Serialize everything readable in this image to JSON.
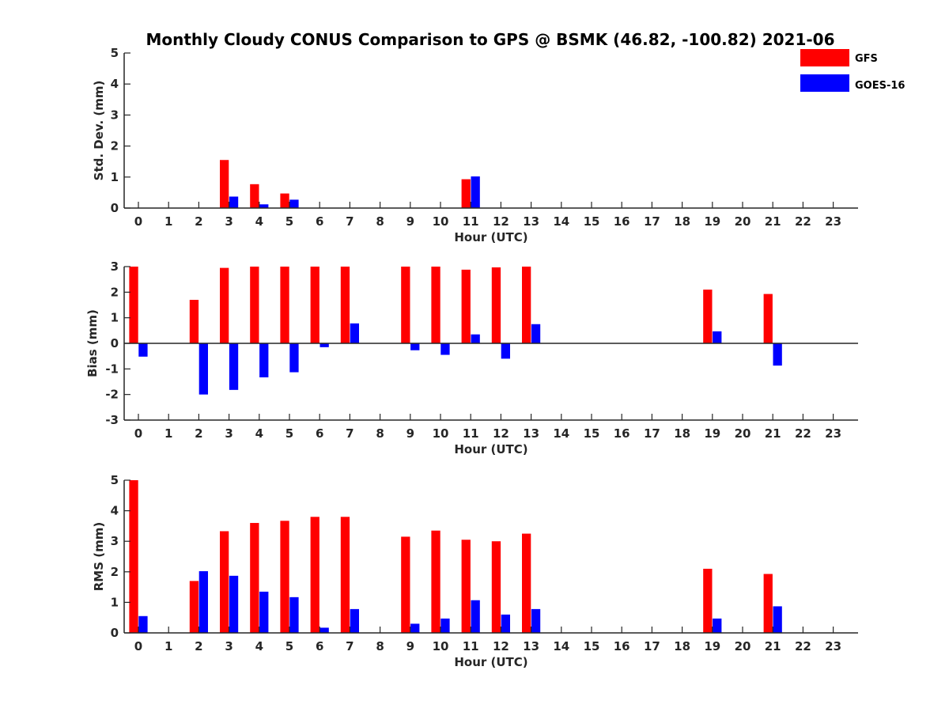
{
  "title": "Monthly Cloudy CONUS Comparison to GPS @ BSMK (46.82, -100.82) 2021-06",
  "legend": {
    "items": [
      {
        "label": "GFS",
        "color": "#ff0000"
      },
      {
        "label": "GOES-16",
        "color": "#0000ff"
      }
    ],
    "location": "top-right"
  },
  "chart_data": [
    {
      "type": "bar",
      "ylabel": "Std. Dev. (mm)",
      "xlabel": "Hour (UTC)",
      "ylim": [
        0,
        5
      ],
      "yticks": [
        0,
        1,
        2,
        3,
        4,
        5
      ],
      "categories": [
        "0",
        "1",
        "2",
        "3",
        "4",
        "5",
        "6",
        "7",
        "8",
        "9",
        "10",
        "11",
        "12",
        "13",
        "14",
        "15",
        "16",
        "17",
        "18",
        "19",
        "20",
        "21",
        "22",
        "23"
      ],
      "series": [
        {
          "name": "GFS",
          "color": "#ff0000",
          "values": [
            null,
            null,
            null,
            1.55,
            0.77,
            0.47,
            null,
            null,
            null,
            null,
            null,
            0.93,
            null,
            null,
            null,
            null,
            null,
            null,
            null,
            null,
            null,
            null,
            null,
            null
          ]
        },
        {
          "name": "GOES-16",
          "color": "#0000ff",
          "values": [
            null,
            null,
            null,
            0.37,
            0.12,
            0.27,
            null,
            null,
            null,
            null,
            null,
            1.02,
            null,
            null,
            null,
            null,
            null,
            null,
            null,
            null,
            null,
            null,
            null,
            null
          ]
        }
      ]
    },
    {
      "type": "bar",
      "ylabel": "Bias (mm)",
      "xlabel": "Hour (UTC)",
      "ylim": [
        -3,
        3
      ],
      "yticks": [
        -3,
        -2,
        -1,
        0,
        1,
        2,
        3
      ],
      "categories": [
        "0",
        "1",
        "2",
        "3",
        "4",
        "5",
        "6",
        "7",
        "8",
        "9",
        "10",
        "11",
        "12",
        "13",
        "14",
        "15",
        "16",
        "17",
        "18",
        "19",
        "20",
        "21",
        "22",
        "23"
      ],
      "series": [
        {
          "name": "GFS",
          "color": "#ff0000",
          "values": [
            3.0,
            null,
            1.7,
            2.95,
            3.0,
            3.0,
            3.0,
            3.0,
            null,
            3.0,
            3.0,
            2.88,
            2.97,
            3.0,
            null,
            null,
            null,
            null,
            null,
            2.1,
            null,
            1.93,
            null,
            null
          ]
        },
        {
          "name": "GOES-16",
          "color": "#0000ff",
          "values": [
            -0.52,
            null,
            -2.0,
            -1.82,
            -1.33,
            -1.13,
            -0.15,
            0.78,
            null,
            -0.27,
            -0.45,
            0.35,
            -0.6,
            0.75,
            null,
            null,
            null,
            null,
            null,
            0.47,
            null,
            -0.87,
            null,
            null
          ]
        }
      ]
    },
    {
      "type": "bar",
      "ylabel": "RMS (mm)",
      "xlabel": "Hour (UTC)",
      "ylim": [
        0,
        5
      ],
      "yticks": [
        0,
        1,
        2,
        3,
        4,
        5
      ],
      "categories": [
        "0",
        "1",
        "2",
        "3",
        "4",
        "5",
        "6",
        "7",
        "8",
        "9",
        "10",
        "11",
        "12",
        "13",
        "14",
        "15",
        "16",
        "17",
        "18",
        "19",
        "20",
        "21",
        "22",
        "23"
      ],
      "series": [
        {
          "name": "GFS",
          "color": "#ff0000",
          "values": [
            5.0,
            null,
            1.7,
            3.33,
            3.6,
            3.67,
            3.8,
            3.8,
            null,
            3.15,
            3.35,
            3.05,
            3.0,
            3.25,
            null,
            null,
            null,
            null,
            null,
            2.1,
            null,
            1.93,
            null,
            null
          ]
        },
        {
          "name": "GOES-16",
          "color": "#0000ff",
          "values": [
            0.55,
            null,
            2.02,
            1.87,
            1.35,
            1.17,
            0.17,
            0.78,
            null,
            0.3,
            0.47,
            1.07,
            0.6,
            0.78,
            null,
            null,
            null,
            null,
            null,
            0.47,
            null,
            0.87,
            null,
            null
          ]
        }
      ]
    }
  ]
}
